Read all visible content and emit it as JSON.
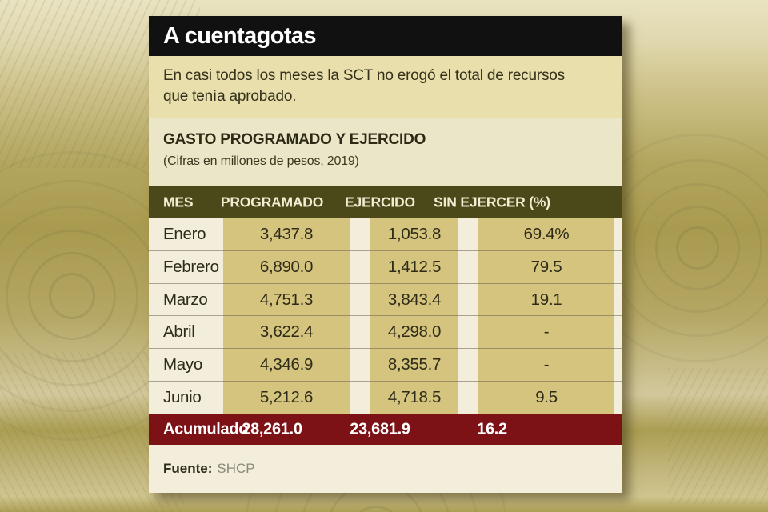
{
  "card": {
    "title": "A cuentagotas",
    "subtitle_lines": [
      "En casi todos los meses la SCT no erogó el total de recursos",
      "que tenía aprobado."
    ],
    "chart_heading": "GASTO PROGRAMADO Y EJERCIDO",
    "chart_subheading": "(Cifras en millones de pesos, 2019)",
    "source_label": "Fuente:",
    "source_value": "SHCP"
  },
  "table": {
    "headers": {
      "mes": "MES",
      "programado": "PROGRAMADO",
      "ejercido": "EJERCIDO",
      "sin_ejercer": "SIN EJERCER (%)"
    },
    "rows": [
      {
        "mes": "Enero",
        "programado": "3,437.8",
        "ejercido": "1,053.8",
        "sin_ejercer": "69.4%"
      },
      {
        "mes": "Febrero",
        "programado": "6,890.0",
        "ejercido": "1,412.5",
        "sin_ejercer": "79.5"
      },
      {
        "mes": "Marzo",
        "programado": "4,751.3",
        "ejercido": "3,843.4",
        "sin_ejercer": "19.1"
      },
      {
        "mes": "Abril",
        "programado": "3,622.4",
        "ejercido": "4,298.0",
        "sin_ejercer": "-"
      },
      {
        "mes": "Mayo",
        "programado": "4,346.9",
        "ejercido": "8,355.7",
        "sin_ejercer": "-"
      },
      {
        "mes": "Junio",
        "programado": "5,212.6",
        "ejercido": "4,718.5",
        "sin_ejercer": "9.5"
      }
    ],
    "total": {
      "label": "Acumulado",
      "programado": "28,261.0",
      "ejercido": "23,681.9",
      "sin_ejercer": "16.2"
    }
  },
  "chart_data": {
    "type": "table",
    "title": "GASTO PROGRAMADO Y EJERCIDO",
    "subtitle": "Cifras en millones de pesos, 2019",
    "columns": [
      "MES",
      "PROGRAMADO",
      "EJERCIDO",
      "SIN EJERCER (%)"
    ],
    "rows": [
      [
        "Enero",
        3437.8,
        1053.8,
        69.4
      ],
      [
        "Febrero",
        6890.0,
        1412.5,
        79.5
      ],
      [
        "Marzo",
        4751.3,
        3843.4,
        19.1
      ],
      [
        "Abril",
        3622.4,
        4298.0,
        null
      ],
      [
        "Mayo",
        4346.9,
        8355.7,
        null
      ],
      [
        "Junio",
        5212.6,
        4718.5,
        9.5
      ]
    ],
    "total_row": [
      "Acumulado",
      28261.0,
      23681.9,
      16.2
    ],
    "units": "millones de pesos",
    "year": 2019,
    "source": "SHCP"
  },
  "colors": {
    "headline_bar": "#101110",
    "lede_band": "#e8dfad",
    "section_band": "#ece6c8",
    "table_header": "#4b4919",
    "table_body": "#f3eedb",
    "column_highlight": "#d5c47e",
    "total_row": "#7c1116",
    "source_band": "#f2eedb",
    "backdrop": "#b3a55c"
  }
}
